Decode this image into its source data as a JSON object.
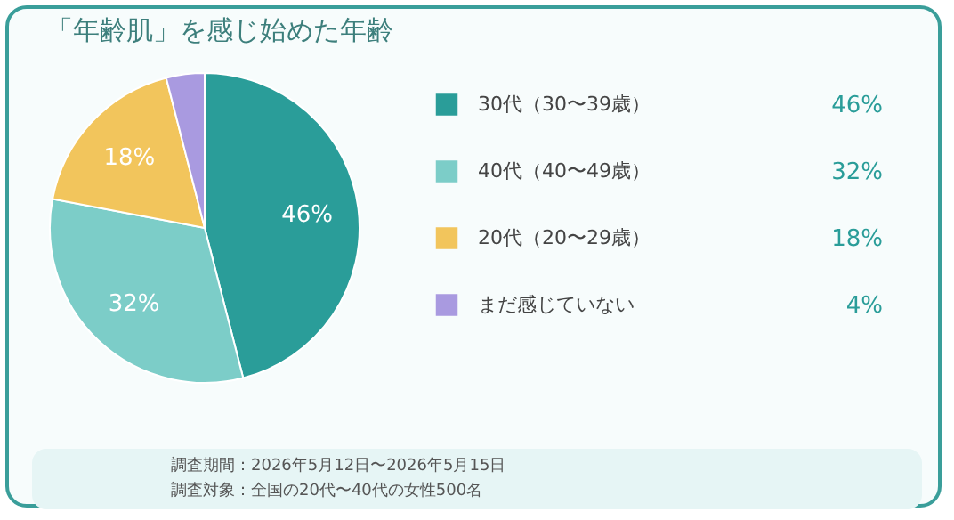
{
  "chart_data": {
    "type": "pie",
    "title": "「年齢肌」を感じ始めた年齢",
    "categories": [
      "30代（30〜39歳）",
      "40代（40〜49歳）",
      "20代（20〜29歳）",
      "まだ感じていない"
    ],
    "values": [
      46,
      32,
      18,
      4
    ],
    "colors": [
      "#2a9d99",
      "#7ccdc8",
      "#f2c55c",
      "#a99ae0"
    ],
    "value_labels": [
      "46%",
      "32%",
      "18%",
      "4%"
    ],
    "legend": "right",
    "annotations": [
      "調査期間：2026年5月12日〜2026年5月15日",
      "調査対象：全国の20代〜40代の女性500名"
    ]
  }
}
